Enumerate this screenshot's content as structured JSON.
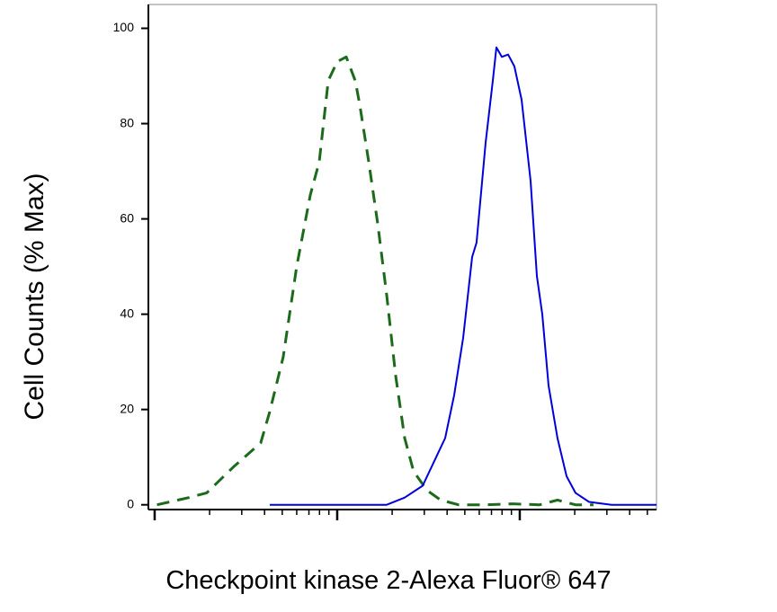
{
  "chart_data": {
    "type": "line",
    "x_label": "Checkpoint kinase 2-Alexa Fluor® 647",
    "y_label": "Cell Counts (% Max)",
    "x_scale": "log",
    "xlim": [
      92.4,
      56100
    ],
    "xticks": [
      100,
      1000,
      10000
    ],
    "ylim": [
      -1,
      105
    ],
    "yticks": [
      0,
      20,
      40,
      60,
      80,
      100
    ],
    "series": [
      {
        "color": "#1b6b1b",
        "dash": true,
        "x": [
          103,
          154,
          193,
          271,
          381,
          427,
          506,
          600,
          712,
          797,
          893,
          1000,
          1120,
          1255,
          1328,
          1488,
          1666,
          1866,
          2090,
          2341,
          2622,
          3109,
          3686,
          4624,
          6500,
          9130,
          12840,
          16100,
          20200,
          25340
        ],
        "values": [
          0,
          1.5,
          2.5,
          8,
          13,
          19.5,
          31,
          50,
          65,
          72,
          89,
          93,
          94,
          89,
          84,
          72,
          59,
          44,
          27,
          14,
          7,
          3,
          1,
          0,
          0,
          0.2,
          0,
          1,
          0,
          0
        ]
      },
      {
        "color": "#0000dd",
        "dash": false,
        "x": [
          427,
          1866,
          2341,
          2938,
          3483,
          3900,
          4370,
          4895,
          5483,
          5800,
          6500,
          7115,
          7445,
          7970,
          8630,
          9342,
          10230,
          11460,
          12410,
          13280,
          14380,
          16100,
          18040,
          20200,
          23950,
          31800,
          56100
        ],
        "values": [
          0,
          0,
          1.5,
          4,
          10,
          14,
          23,
          35,
          52,
          55,
          76,
          89,
          96,
          94,
          94.5,
          92,
          85,
          68,
          48,
          40,
          25,
          14,
          6,
          2.5,
          0.6,
          0,
          0
        ]
      }
    ]
  }
}
